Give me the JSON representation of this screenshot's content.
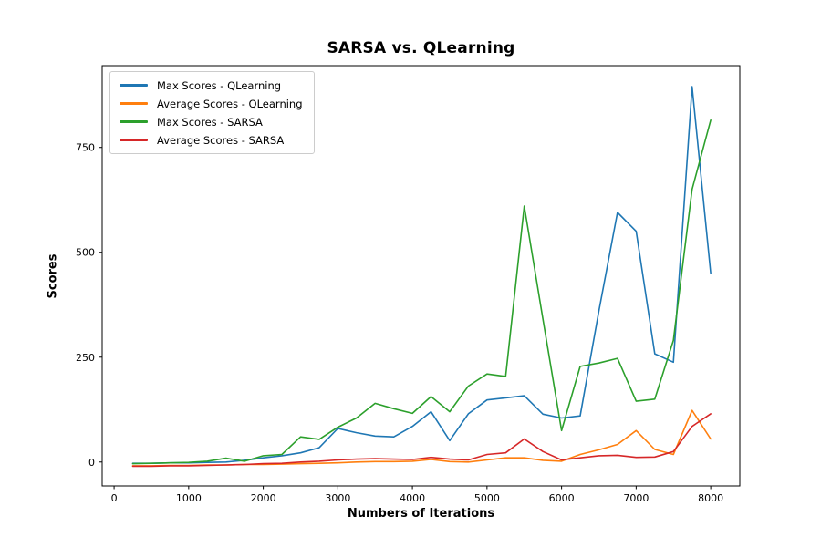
{
  "title": "SARSA vs. QLearning",
  "chart_data": {
    "type": "line",
    "title": "SARSA vs. QLearning",
    "xlabel": "Numbers of Iterations",
    "ylabel": "Scores",
    "xlim": [
      -160,
      8390
    ],
    "ylim": [
      -57,
      945
    ],
    "x_ticks": [
      0,
      1000,
      2000,
      3000,
      4000,
      5000,
      6000,
      7000,
      8000
    ],
    "y_ticks": [
      0,
      250,
      500,
      750
    ],
    "grid": false,
    "legend_position": "upper left",
    "x": [
      250,
      500,
      750,
      1000,
      1250,
      1500,
      1750,
      2000,
      2250,
      2500,
      2750,
      3000,
      3250,
      3500,
      3750,
      4000,
      4250,
      4500,
      4750,
      5000,
      5250,
      5500,
      5750,
      6000,
      6250,
      6500,
      6750,
      7000,
      7250,
      7500,
      7750,
      8000
    ],
    "series": [
      {
        "name": "Max Scores - QLearning",
        "color": "#1f77b4",
        "values": [
          -3,
          -3,
          -2,
          -2,
          -1,
          0,
          4,
          10,
          15,
          22,
          34,
          80,
          70,
          62,
          60,
          85,
          120,
          51,
          115,
          148,
          153,
          158,
          114,
          105,
          110,
          360,
          595,
          550,
          258,
          238,
          895,
          450
        ]
      },
      {
        "name": "Average Scores - QLearning",
        "color": "#ff7f0e",
        "values": [
          -9,
          -9,
          -8,
          -8,
          -7,
          -7,
          -6,
          -6,
          -5,
          -4,
          -3,
          -2,
          0,
          1,
          1,
          2,
          6,
          1,
          0,
          5,
          10,
          10,
          4,
          2,
          18,
          29,
          42,
          75,
          30,
          18,
          123,
          55
        ]
      },
      {
        "name": "Max Scores - SARSA",
        "color": "#2ca02c",
        "values": [
          -4,
          -3,
          -2,
          -1,
          2,
          9,
          2,
          15,
          18,
          60,
          54,
          83,
          105,
          140,
          127,
          116,
          156,
          120,
          181,
          210,
          204,
          610,
          340,
          75,
          228,
          236,
          247,
          145,
          150,
          290,
          650,
          815
        ]
      },
      {
        "name": "Average Scores - SARSA",
        "color": "#d62728",
        "values": [
          -10,
          -10,
          -9,
          -9,
          -8,
          -7,
          -6,
          -4,
          -3,
          0,
          2,
          5,
          7,
          8,
          7,
          6,
          11,
          7,
          5,
          18,
          22,
          55,
          25,
          5,
          10,
          15,
          16,
          11,
          12,
          25,
          85,
          115
        ]
      }
    ]
  }
}
